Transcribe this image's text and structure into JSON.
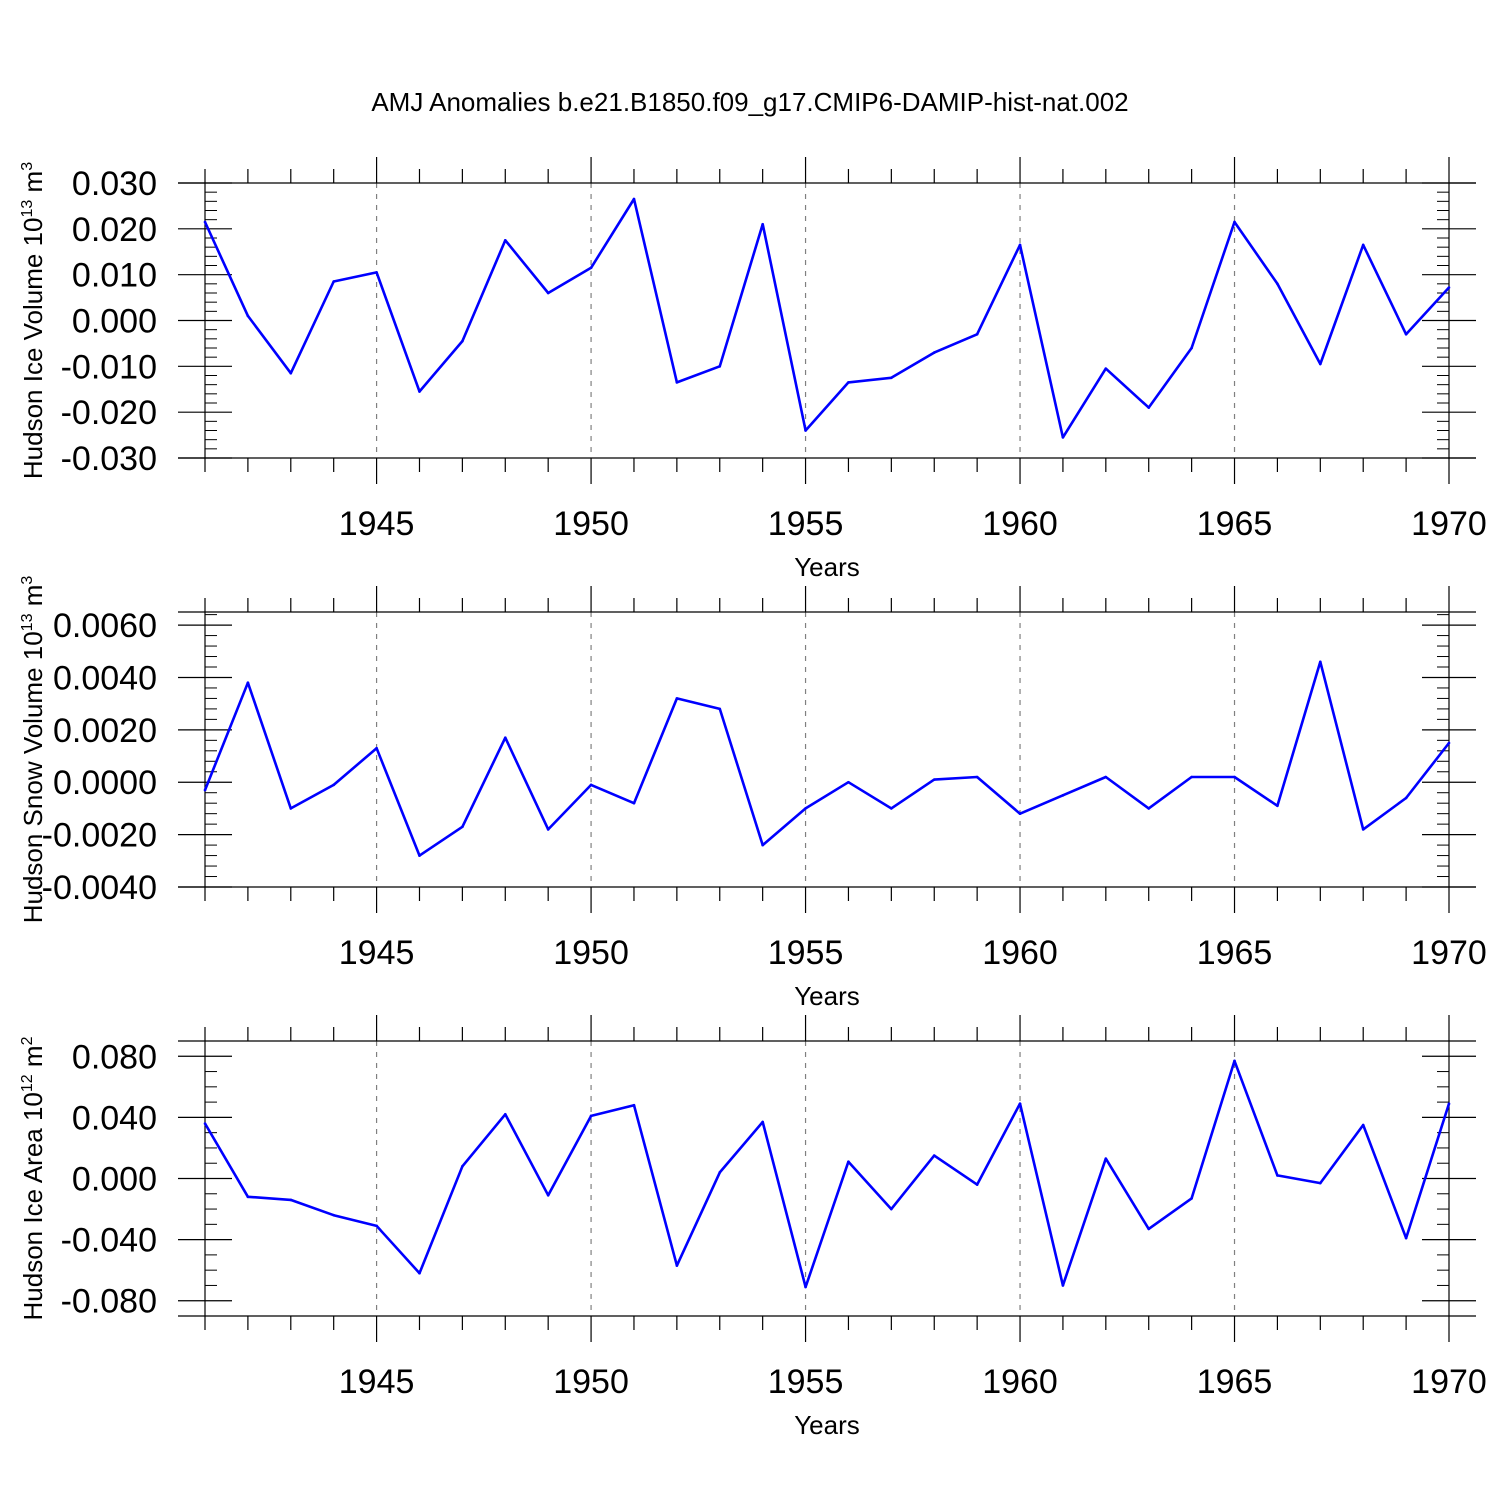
{
  "title": "AMJ Anomalies b.e21.B1850.f09_g17.CMIP6-DAMIP-hist-nat.002",
  "colors": {
    "line": "#0000ff",
    "axis": "#000000",
    "grid": "#808080"
  },
  "chart_data": [
    {
      "type": "line",
      "xlabel": "Years",
      "ylabel": "Hudson Ice Volume 10",
      "ylabel_exp": "13",
      "ylabel_unit": " m",
      "ylabel_unit_exp": "3",
      "xlim": [
        1941,
        1970
      ],
      "ylim": [
        -0.03,
        0.03
      ],
      "x_ticks": [
        1945,
        1950,
        1955,
        1960,
        1965,
        1970
      ],
      "x_tick_labels": [
        "1945",
        "1950",
        "1955",
        "1960",
        "1965",
        "1970"
      ],
      "y_ticks": [
        0.03,
        0.02,
        0.01,
        0.0,
        -0.01,
        -0.02,
        -0.03
      ],
      "y_tick_labels": [
        "0.030",
        "0.020",
        "0.010",
        "0.000",
        "-0.010",
        "-0.020",
        "-0.030"
      ],
      "y_minor_step": 0.002,
      "grid": "vertical dashed at major x ticks",
      "x": [
        1941,
        1942,
        1943,
        1944,
        1945,
        1946,
        1947,
        1948,
        1949,
        1950,
        1951,
        1952,
        1953,
        1954,
        1955,
        1956,
        1957,
        1958,
        1959,
        1960,
        1961,
        1962,
        1963,
        1964,
        1965,
        1966,
        1967,
        1968,
        1969,
        1970
      ],
      "values": [
        0.0215,
        0.001,
        -0.0115,
        0.0085,
        0.0105,
        -0.0155,
        -0.0045,
        0.0175,
        0.006,
        0.0115,
        0.0265,
        -0.0135,
        -0.01,
        0.021,
        -0.024,
        -0.0135,
        -0.0125,
        -0.007,
        -0.003,
        0.0165,
        -0.0255,
        -0.0105,
        -0.019,
        -0.006,
        0.0215,
        0.008,
        -0.0095,
        0.0165,
        -0.003,
        0.0072
      ]
    },
    {
      "type": "line",
      "xlabel": "Years",
      "ylabel": "Hudson Snow Volume 10",
      "ylabel_exp": "13",
      "ylabel_unit": " m",
      "ylabel_unit_exp": "3",
      "xlim": [
        1941,
        1970
      ],
      "ylim": [
        -0.004,
        0.0065
      ],
      "x_ticks": [
        1945,
        1950,
        1955,
        1960,
        1965,
        1970
      ],
      "x_tick_labels": [
        "1945",
        "1950",
        "1955",
        "1960",
        "1965",
        "1970"
      ],
      "y_ticks": [
        0.006,
        0.004,
        0.002,
        0.0,
        -0.002,
        -0.004
      ],
      "y_tick_labels": [
        "0.0060",
        "0.0040",
        "0.0020",
        "0.0000",
        "-0.0020",
        "-0.0040"
      ],
      "y_minor_step": 0.0004,
      "grid": "vertical dashed at major x ticks",
      "x": [
        1941,
        1942,
        1943,
        1944,
        1945,
        1946,
        1947,
        1948,
        1949,
        1950,
        1951,
        1952,
        1953,
        1954,
        1955,
        1956,
        1957,
        1958,
        1959,
        1960,
        1961,
        1962,
        1963,
        1964,
        1965,
        1966,
        1967,
        1968,
        1969,
        1970
      ],
      "values": [
        -0.0003,
        0.0038,
        -0.001,
        -0.0001,
        0.0013,
        -0.0028,
        -0.0017,
        0.0017,
        -0.0018,
        -0.0001,
        -0.0008,
        0.0032,
        0.0028,
        -0.0024,
        -0.001,
        0.0,
        -0.001,
        0.0001,
        0.0002,
        -0.0012,
        -0.0005,
        0.0002,
        -0.001,
        0.0002,
        0.0002,
        -0.0009,
        0.0046,
        -0.0018,
        -0.0006,
        0.0015
      ]
    },
    {
      "type": "line",
      "xlabel": "Years",
      "ylabel": "Hudson Ice Area 10",
      "ylabel_exp": "12",
      "ylabel_unit": " m",
      "ylabel_unit_exp": "2",
      "xlim": [
        1941,
        1970
      ],
      "ylim": [
        -0.09,
        0.09
      ],
      "x_ticks": [
        1945,
        1950,
        1955,
        1960,
        1965,
        1970
      ],
      "x_tick_labels": [
        "1945",
        "1950",
        "1955",
        "1960",
        "1965",
        "1970"
      ],
      "y_ticks": [
        0.08,
        0.04,
        0.0,
        -0.04,
        -0.08
      ],
      "y_tick_labels": [
        "0.080",
        "0.040",
        "0.000",
        "-0.040",
        "-0.080"
      ],
      "y_minor_step": 0.01,
      "grid": "vertical dashed at major x ticks",
      "x": [
        1941,
        1942,
        1943,
        1944,
        1945,
        1946,
        1947,
        1948,
        1949,
        1950,
        1951,
        1952,
        1953,
        1954,
        1955,
        1956,
        1957,
        1958,
        1959,
        1960,
        1961,
        1962,
        1963,
        1964,
        1965,
        1966,
        1967,
        1968,
        1969,
        1970
      ],
      "values": [
        0.036,
        -0.012,
        -0.014,
        -0.024,
        -0.031,
        -0.062,
        0.008,
        0.042,
        -0.011,
        0.041,
        0.048,
        -0.057,
        0.004,
        0.037,
        -0.071,
        0.011,
        -0.02,
        0.015,
        -0.004,
        0.049,
        -0.07,
        0.013,
        -0.033,
        -0.013,
        0.077,
        0.002,
        -0.003,
        0.035,
        -0.039,
        0.049
      ]
    }
  ]
}
